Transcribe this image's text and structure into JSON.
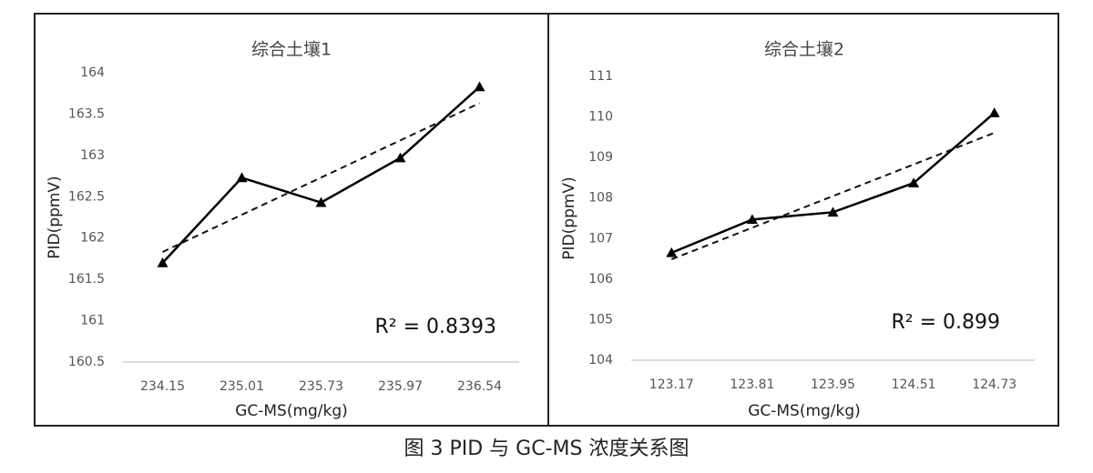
{
  "chart_data": [
    {
      "type": "line",
      "title": "综合土壤1",
      "x_label": "GC-MS(mg/kg)",
      "y_label": "PID(ppmV)",
      "categories": [
        "234.15",
        "235.01",
        "235.73",
        "235.97",
        "236.54"
      ],
      "values": [
        161.7,
        162.73,
        162.43,
        162.97,
        163.83
      ],
      "color": "#000000",
      "marker": "triangle",
      "trendline": "linear",
      "annotation": "R² = 0.8393",
      "ylim": [
        160.5,
        164
      ],
      "yticks": [
        160.5,
        161,
        161.5,
        162,
        162.5,
        163,
        163.5,
        164
      ],
      "grid": false
    },
    {
      "type": "line",
      "title": "综合土壤2",
      "x_label": "GC-MS(mg/kg)",
      "y_label": "PID(ppmV)",
      "categories": [
        "123.17",
        "123.81",
        "123.95",
        "124.51",
        "124.73"
      ],
      "values": [
        106.65,
        107.47,
        107.65,
        108.37,
        110.1
      ],
      "color": "#000000",
      "marker": "triangle",
      "trendline": "linear",
      "annotation": "R² = 0.899",
      "ylim": [
        104,
        111
      ],
      "yticks": [
        104,
        105,
        106,
        107,
        108,
        109,
        110,
        111
      ],
      "grid": false
    }
  ],
  "caption": "图 3 PID 与 GC-MS 浓度关系图"
}
